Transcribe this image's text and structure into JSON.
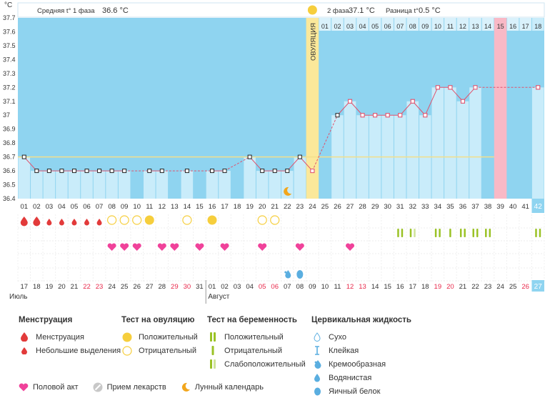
{
  "header": {
    "unit_label": "°C",
    "phase1_label": "Средняя t° 1 фаза",
    "phase1_value": "36.6 °C",
    "phase2_label": "2 фаза",
    "phase2_value": "37.1 °C",
    "diff_label": "Разница t°",
    "diff_value": "0.5 °C",
    "ovulation_label": "ОВУЛЯЦИЯ"
  },
  "chart_data": {
    "type": "line",
    "title": "Базальная температура",
    "ylabel": "°C",
    "ylim": [
      36.4,
      37.7
    ],
    "yticks": [
      36.4,
      36.5,
      36.6,
      36.7,
      36.8,
      36.9,
      37.0,
      37.1,
      37.2,
      37.3,
      37.4,
      37.5,
      37.6,
      37.7
    ],
    "ytick_labels": [
      "36.4",
      "36.5",
      "36.6",
      "36.7",
      "36.8",
      "36.9",
      "37",
      "37.1",
      "37.2",
      "37.3",
      "37.4",
      "37.5",
      "37.6",
      "37.7"
    ],
    "cover_line": 36.7,
    "ovulation_day": 24,
    "cycle_days": [
      "01",
      "02",
      "03",
      "04",
      "05",
      "06",
      "07",
      "08",
      "09",
      "10",
      "11",
      "12",
      "13",
      "14",
      "15",
      "16",
      "17",
      "18",
      "19",
      "20",
      "21",
      "22",
      "23",
      "24",
      "25",
      "26",
      "27",
      "28",
      "29",
      "30",
      "31",
      "32",
      "33",
      "34",
      "35",
      "36",
      "37",
      "38",
      "39",
      "40",
      "41",
      "42"
    ],
    "dpo_labels": [
      "01",
      "02",
      "03",
      "04",
      "05",
      "06",
      "07",
      "08",
      "09",
      "10",
      "11",
      "12",
      "13",
      "14",
      "15",
      "16",
      "17",
      "18"
    ],
    "highlight_dpo": "15",
    "temperatures": [
      36.7,
      36.6,
      36.6,
      36.6,
      36.6,
      36.6,
      36.6,
      36.6,
      36.6,
      null,
      36.6,
      36.6,
      null,
      36.6,
      null,
      36.6,
      36.6,
      null,
      36.7,
      36.6,
      36.6,
      36.6,
      36.7,
      36.6,
      null,
      37.0,
      37.1,
      37.0,
      37.0,
      37.0,
      37.0,
      37.1,
      37.0,
      37.2,
      37.2,
      37.1,
      37.2,
      null,
      null,
      null,
      null,
      37.2
    ],
    "flagged_points": [
      26
    ],
    "calendar_dates": [
      "17",
      "18",
      "19",
      "20",
      "21",
      "22",
      "23",
      "24",
      "25",
      "26",
      "27",
      "28",
      "29",
      "30",
      "31",
      "01",
      "02",
      "03",
      "04",
      "05",
      "06",
      "07",
      "08",
      "09",
      "10",
      "11",
      "12",
      "13",
      "14",
      "15",
      "16",
      "17",
      "18",
      "19",
      "20",
      "21",
      "22",
      "23",
      "24",
      "25",
      "26",
      "27"
    ],
    "weekend_indices": [
      5,
      6,
      12,
      13,
      19,
      20,
      26,
      27,
      33,
      34,
      40
    ],
    "months": [
      {
        "label": "Июль",
        "start": 0
      },
      {
        "label": "Август",
        "start": 15
      }
    ],
    "menstruation": {
      "heavy": [
        1,
        2
      ],
      "light": [
        3,
        4,
        5,
        6,
        7
      ]
    },
    "ovulation_tests": {
      "positive": [
        11,
        16
      ],
      "negative": [
        8,
        9,
        10,
        14,
        20,
        21
      ]
    },
    "pregnancy_tests": {
      "faint": [
        32
      ],
      "negative": [
        35
      ],
      "positive": [
        31,
        34,
        36,
        37,
        38,
        42
      ]
    },
    "intercourse": [
      8,
      9,
      10,
      12,
      13,
      15,
      17,
      20,
      23,
      27
    ],
    "cervical": {
      "creamy": [
        22
      ],
      "egg_white": [
        23
      ]
    },
    "moon": [
      22
    ]
  },
  "legend": {
    "menstruation": {
      "title": "Менструация",
      "items": [
        "Менструация",
        "Небольшие выделения"
      ]
    },
    "ovulation_test": {
      "title": "Тест на овуляцию",
      "items": [
        "Положительный",
        "Отрицательный"
      ]
    },
    "pregnancy_test": {
      "title": "Тест на беременность",
      "items": [
        "Положительный",
        "Отрицательный",
        "Слабоположительный"
      ]
    },
    "cervical": {
      "title": "Цервикальная жидкость",
      "items": [
        "Сухо",
        "Клейкая",
        "Кремообразная",
        "Водянистая",
        "Яичный белок"
      ]
    },
    "bottom": [
      "Половой акт",
      "Прием лекарств",
      "Лунный календарь"
    ]
  },
  "colors": {
    "bg_blue": "#8fd4f0",
    "bar": "#c9ecfa",
    "line": "#e0536e",
    "cover": "#f3df8a",
    "ovulation": "#fbe89a",
    "pink": "#f9b9c6",
    "heart": "#f0429a",
    "drop": "#e23a3a",
    "sun": "#f6ce3c",
    "preg": "#9ac225",
    "preg_faint": "#cfe39a",
    "weekend": "#e8294b",
    "cervical": "#5aaee0"
  }
}
